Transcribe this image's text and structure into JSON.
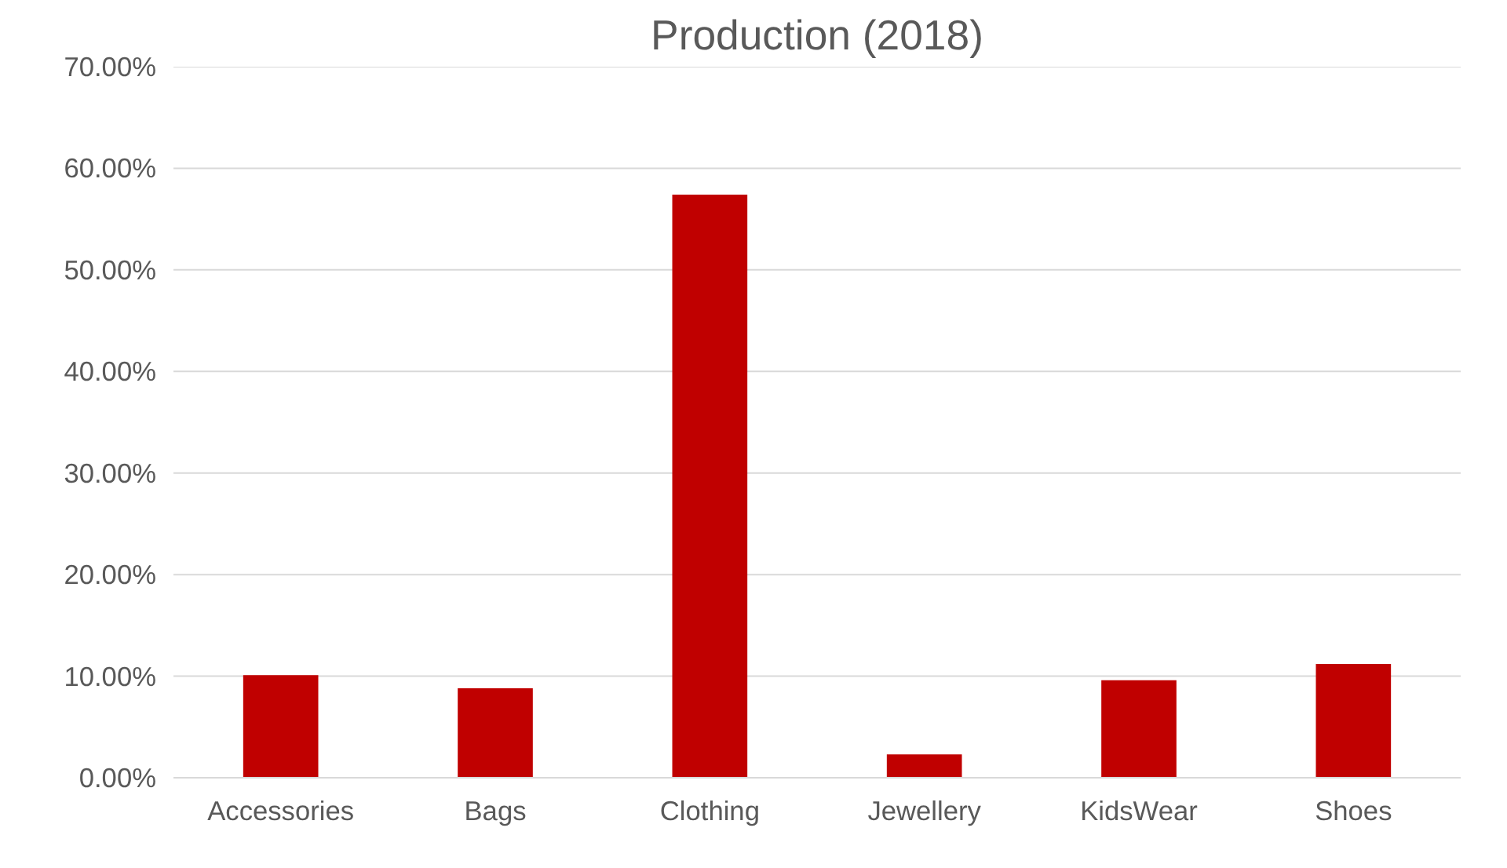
{
  "chart_data": {
    "type": "bar",
    "title": "Production (2018)",
    "categories": [
      "Accessories",
      "Bags",
      "Clothing",
      "Jewellery",
      "KidsWear",
      "Shoes"
    ],
    "values": [
      10.1,
      8.8,
      57.4,
      2.3,
      9.6,
      11.2
    ],
    "color": "#c00000",
    "ylim": [
      0,
      70
    ],
    "yticks": [
      {
        "value": 0,
        "label": "0.00%"
      },
      {
        "value": 10,
        "label": "10.00%"
      },
      {
        "value": 20,
        "label": "20.00%"
      },
      {
        "value": 30,
        "label": "30.00%"
      },
      {
        "value": 40,
        "label": "40.00%"
      },
      {
        "value": 50,
        "label": "50.00%"
      },
      {
        "value": 60,
        "label": "60.00%"
      },
      {
        "value": 70,
        "label": "70.00%"
      }
    ],
    "grid": "y"
  }
}
